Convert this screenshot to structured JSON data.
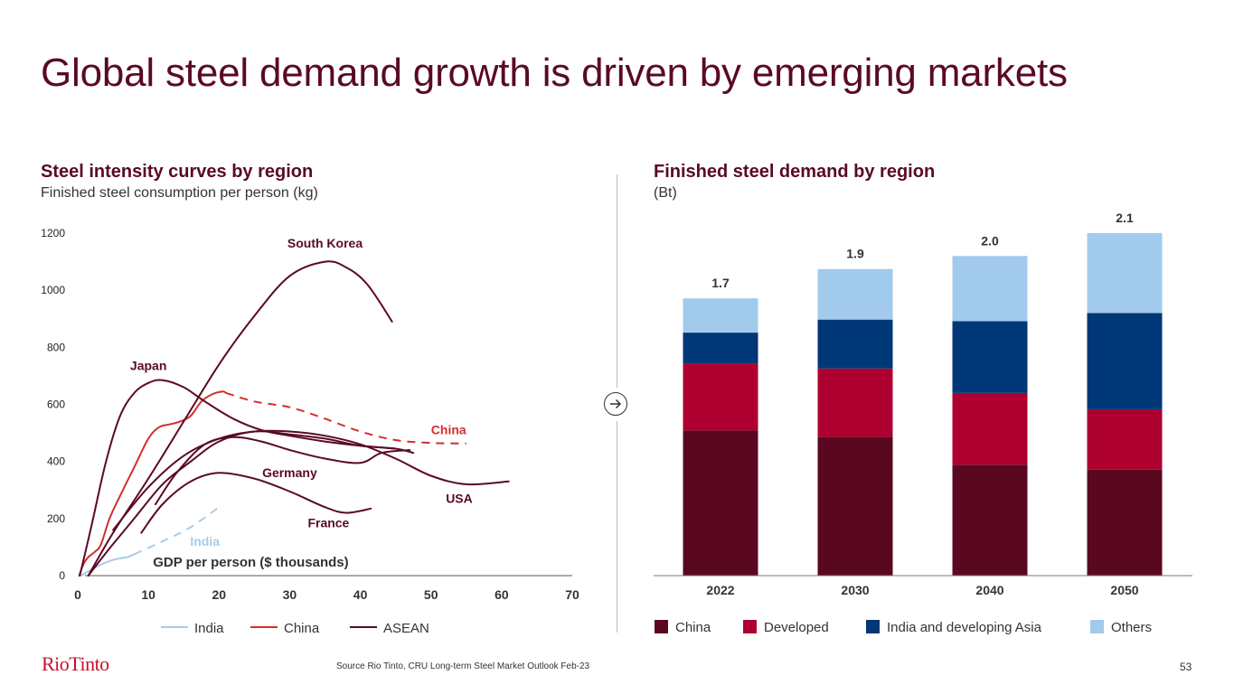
{
  "slide": {
    "title": "Global steel demand growth is driven by emerging markets",
    "footer": {
      "logo": "RioTinto",
      "source": "Source Rio Tinto, CRU Long-term Steel Market Outlook Feb-23",
      "page_number": "53"
    },
    "divider_icon": "arrow-right-circle-icon",
    "colors": {
      "title": "#5a0a24",
      "china_bar": "#5a0820",
      "developed_bar": "#ad0030",
      "india_bar": "#003777",
      "others_bar": "#a2caec",
      "china_line": "#d42e2e",
      "asean_line": "#5a0a24",
      "india_line": "#a8cbe8"
    }
  },
  "chart_data": [
    {
      "type": "line",
      "title": "Steel intensity curves by region",
      "subtitle": "Finished steel consumption per person (kg)",
      "xlabel": "GDP per person ($ thousands)",
      "ylabel": "",
      "xlim": [
        0,
        70
      ],
      "ylim": [
        0,
        1200
      ],
      "x_ticks": [
        "0",
        "10",
        "20",
        "30",
        "40",
        "50",
        "60",
        "70"
      ],
      "y_ticks": [
        "0",
        "200",
        "400",
        "600",
        "800",
        "1000",
        "1200"
      ],
      "grid": false,
      "legend": {
        "placement": "bottom",
        "entries": [
          "India",
          "China",
          "ASEAN"
        ]
      },
      "series": [
        {
          "name": "India",
          "label": "India",
          "style": "solid",
          "color": "#a8cbe8",
          "x": [
            0.5,
            1.5,
            3,
            5,
            7,
            8
          ],
          "y": [
            0,
            15,
            35,
            55,
            65,
            75
          ]
        },
        {
          "name": "India projection",
          "label": "India",
          "style": "dashed",
          "color": "#a8cbe8",
          "x": [
            8,
            12,
            16,
            20
          ],
          "y": [
            75,
            120,
            170,
            240
          ]
        },
        {
          "name": "China",
          "label": "China",
          "style": "solid",
          "color": "#d42e2e",
          "x": [
            0.2,
            0.8,
            1.5,
            2.5,
            3.3,
            4.5,
            6,
            8,
            10,
            11.5,
            13,
            14.5,
            16,
            17.5,
            19,
            20.5,
            21
          ],
          "y": [
            0,
            40,
            65,
            85,
            110,
            200,
            280,
            380,
            480,
            520,
            530,
            540,
            560,
            610,
            635,
            645,
            640
          ]
        },
        {
          "name": "China projection",
          "label": "China",
          "style": "dashed",
          "color": "#d42e2e",
          "x": [
            21,
            25,
            30,
            35,
            40,
            45,
            50,
            55
          ],
          "y": [
            640,
            610,
            590,
            550,
            505,
            475,
            465,
            463
          ]
        },
        {
          "name": "Japan",
          "label": "Japan",
          "style": "solid",
          "color": "#5a0a24",
          "x": [
            0.3,
            2,
            4,
            6,
            8,
            10,
            12,
            15,
            18,
            22,
            26,
            30,
            35,
            40,
            45
          ],
          "y": [
            0,
            180,
            400,
            560,
            640,
            675,
            685,
            660,
            610,
            550,
            510,
            490,
            470,
            455,
            445
          ]
        },
        {
          "name": "South Korea",
          "label": "South Korea",
          "style": "solid",
          "color": "#5a0a24",
          "x": [
            1.5,
            5,
            10,
            15,
            20,
            25,
            30,
            35,
            38,
            41,
            44.5
          ],
          "y": [
            0,
            150,
            340,
            540,
            740,
            910,
            1050,
            1100,
            1080,
            1020,
            890
          ]
        },
        {
          "name": "Germany",
          "label": "Germany",
          "style": "solid",
          "color": "#5a0a24",
          "x": [
            11,
            14,
            18,
            22,
            26,
            30,
            35,
            40,
            43,
            47
          ],
          "y": [
            250,
            360,
            460,
            485,
            470,
            440,
            410,
            395,
            430,
            440
          ]
        },
        {
          "name": "France",
          "label": "France",
          "style": "solid",
          "color": "#5a0a24",
          "x": [
            9,
            12,
            16,
            20,
            25,
            30,
            35,
            38,
            41.5
          ],
          "y": [
            150,
            250,
            330,
            360,
            340,
            295,
            240,
            220,
            235
          ]
        },
        {
          "name": "USA",
          "label": "USA",
          "style": "solid",
          "color": "#5a0a24",
          "x": [
            5,
            10,
            15,
            20,
            25,
            30,
            35,
            40,
            45,
            50,
            55,
            61
          ],
          "y": [
            160,
            310,
            420,
            480,
            505,
            505,
            490,
            460,
            410,
            350,
            320,
            330
          ]
        },
        {
          "name": "ASEAN",
          "label": "",
          "style": "solid",
          "color": "#5a0a24",
          "x": [
            1.5,
            4,
            8,
            12,
            16,
            20,
            25,
            30,
            35,
            40,
            45,
            47.5
          ],
          "y": [
            0,
            80,
            200,
            320,
            400,
            470,
            505,
            495,
            480,
            455,
            445,
            430
          ]
        }
      ],
      "annotations": [
        {
          "text": "South Korea",
          "x": 35,
          "y": 1150,
          "color": "#5a0a24"
        },
        {
          "text": "Japan",
          "x": 10,
          "y": 720,
          "color": "#5a0a24"
        },
        {
          "text": "China",
          "x": 52.5,
          "y": 495,
          "color": "#d42e2e"
        },
        {
          "text": "Germany",
          "x": 30,
          "y": 345,
          "color": "#5a0a24"
        },
        {
          "text": "USA",
          "x": 54,
          "y": 255,
          "color": "#5a0a24"
        },
        {
          "text": "France",
          "x": 35.5,
          "y": 170,
          "color": "#5a0a24"
        },
        {
          "text": "India",
          "x": 18,
          "y": 105,
          "color": "#a8cbe8"
        }
      ]
    },
    {
      "type": "bar",
      "stacked": true,
      "title": "Finished steel demand by region",
      "subtitle": "(Bt)",
      "xlabel": "",
      "ylabel": "Bt",
      "ylim": [
        0,
        2.1
      ],
      "grid": false,
      "categories": [
        "2022",
        "2030",
        "2040",
        "2050"
      ],
      "totals": [
        "1.7",
        "1.9",
        "2.0",
        "2.1"
      ],
      "legend": {
        "placement": "bottom"
      },
      "series": [
        {
          "name": "China",
          "color": "#5a0820",
          "values": [
            0.89,
            0.85,
            0.68,
            0.65
          ]
        },
        {
          "name": "Developed",
          "color": "#ad0030",
          "values": [
            0.41,
            0.42,
            0.44,
            0.37
          ]
        },
        {
          "name": "India and developing Asia",
          "color": "#003777",
          "values": [
            0.19,
            0.3,
            0.44,
            0.59
          ]
        },
        {
          "name": "Others",
          "color": "#a2caec",
          "values": [
            0.21,
            0.31,
            0.4,
            0.49
          ]
        }
      ]
    }
  ]
}
